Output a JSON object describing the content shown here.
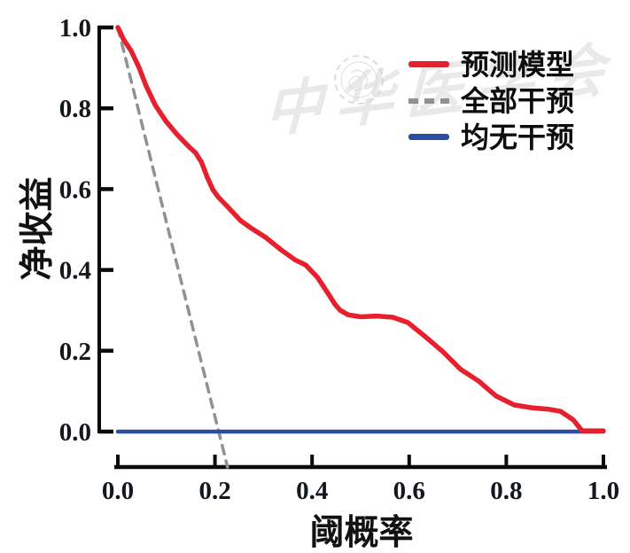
{
  "colors": {
    "prediction_model": "#e6202c",
    "treat_all": "#8f9194",
    "treat_none": "#2e4ca3",
    "axis": "#0a0a0a",
    "tick_label": "#14171d",
    "watermark": "#c9c9c9"
  },
  "axes": {
    "x": {
      "label": "阈概率",
      "tick_labels": [
        "0.0",
        "0.2",
        "0.4",
        "0.6",
        "0.8",
        "1.0"
      ]
    },
    "y": {
      "label": "净收益",
      "tick_labels": [
        "0.0",
        "0.2",
        "0.4",
        "0.6",
        "0.8",
        "1.0"
      ]
    }
  },
  "legend": {
    "items": [
      {
        "key": "prediction-model",
        "label": "预测模型",
        "color": "#e6202c",
        "line_style": "solid"
      },
      {
        "key": "treat-all",
        "label": "全部干预",
        "color": "#8f9194",
        "line_style": "dashed"
      },
      {
        "key": "treat-none",
        "label": "均无干预",
        "color": "#2e4ca3",
        "line_style": "solid"
      }
    ]
  },
  "watermark": {
    "text": "中华医学会",
    "icon": "chinese-medical-association-seal"
  },
  "chart_data": {
    "type": "line",
    "title": "",
    "xlabel": "阈概率",
    "ylabel": "净收益",
    "xlim": [
      0,
      1
    ],
    "ylim": [
      0,
      1
    ],
    "x_ticks": [
      0.0,
      0.2,
      0.4,
      0.6,
      0.8,
      1.0
    ],
    "y_ticks": [
      0.0,
      0.2,
      0.4,
      0.6,
      0.8,
      1.0
    ],
    "grid": false,
    "legend_position": "upper right",
    "series": [
      {
        "name": "预测模型",
        "color": "#e6202c",
        "line_style": "solid",
        "points": [
          [
            0.0,
            1.0
          ],
          [
            0.012,
            0.97
          ],
          [
            0.027,
            0.943
          ],
          [
            0.044,
            0.9
          ],
          [
            0.058,
            0.856
          ],
          [
            0.077,
            0.808
          ],
          [
            0.099,
            0.768
          ],
          [
            0.122,
            0.735
          ],
          [
            0.148,
            0.703
          ],
          [
            0.16,
            0.69
          ],
          [
            0.172,
            0.667
          ],
          [
            0.184,
            0.63
          ],
          [
            0.196,
            0.598
          ],
          [
            0.207,
            0.58
          ],
          [
            0.225,
            0.558
          ],
          [
            0.253,
            0.522
          ],
          [
            0.275,
            0.503
          ],
          [
            0.305,
            0.48
          ],
          [
            0.336,
            0.45
          ],
          [
            0.365,
            0.425
          ],
          [
            0.387,
            0.412
          ],
          [
            0.411,
            0.382
          ],
          [
            0.423,
            0.36
          ],
          [
            0.435,
            0.338
          ],
          [
            0.447,
            0.315
          ],
          [
            0.458,
            0.3
          ],
          [
            0.474,
            0.289
          ],
          [
            0.5,
            0.284
          ],
          [
            0.533,
            0.286
          ],
          [
            0.566,
            0.283
          ],
          [
            0.597,
            0.27
          ],
          [
            0.633,
            0.235
          ],
          [
            0.67,
            0.197
          ],
          [
            0.706,
            0.154
          ],
          [
            0.743,
            0.125
          ],
          [
            0.779,
            0.088
          ],
          [
            0.816,
            0.066
          ],
          [
            0.852,
            0.059
          ],
          [
            0.889,
            0.055
          ],
          [
            0.912,
            0.05
          ],
          [
            0.938,
            0.029
          ],
          [
            0.956,
            0.002
          ],
          [
            1.0,
            0.002
          ]
        ]
      },
      {
        "name": "全部干预",
        "color": "#8f9194",
        "line_style": "dashed",
        "points": [
          [
            0.0,
            1.0
          ],
          [
            0.226,
            -0.088
          ]
        ]
      },
      {
        "name": "均无干预",
        "color": "#2e4ca3",
        "line_style": "solid",
        "points": [
          [
            0.0,
            0.0
          ],
          [
            1.0,
            0.0
          ]
        ]
      }
    ]
  }
}
